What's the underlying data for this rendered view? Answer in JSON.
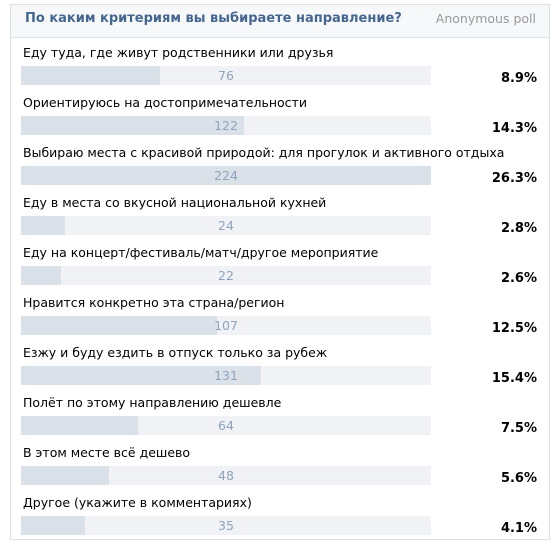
{
  "poll": {
    "title": "По каким критериям вы выбираете направление?",
    "type_label": "Anonymous poll",
    "colors": {
      "title": "#45678f",
      "bar_fill": "#dae1e8",
      "bar_track": "#f0f2f5",
      "count": "#8fa3bd"
    },
    "options": [
      {
        "label": "Еду туда, где живут родственники или друзья",
        "count": "76",
        "percent": "8.9%",
        "share": 0.339
      },
      {
        "label": "Ориентируюсь на достопримечательности",
        "count": "122",
        "percent": "14.3%",
        "share": 0.544
      },
      {
        "label": "Выбираю места с красивой природой: для прогулок и активного отдыха",
        "count": "224",
        "percent": "26.3%",
        "share": 1.0
      },
      {
        "label": "Еду в места со вкусной национальной кухней",
        "count": "24",
        "percent": "2.8%",
        "share": 0.107
      },
      {
        "label": "Еду на концерт/фестиваль/матч/другое мероприятие",
        "count": "22",
        "percent": "2.6%",
        "share": 0.098
      },
      {
        "label": "Нравится конкретно эта страна/регион",
        "count": "107",
        "percent": "12.5%",
        "share": 0.478
      },
      {
        "label": "Езжу и буду ездить в отпуск только за рубеж",
        "count": "131",
        "percent": "15.4%",
        "share": 0.585
      },
      {
        "label": "Полёт по этому направлению дешевле",
        "count": "64",
        "percent": "7.5%",
        "share": 0.286
      },
      {
        "label": "В этом месте всё дешево",
        "count": "48",
        "percent": "5.6%",
        "share": 0.214
      },
      {
        "label": "Другое (укажите в комментариях)",
        "count": "35",
        "percent": "4.1%",
        "share": 0.156
      }
    ]
  }
}
